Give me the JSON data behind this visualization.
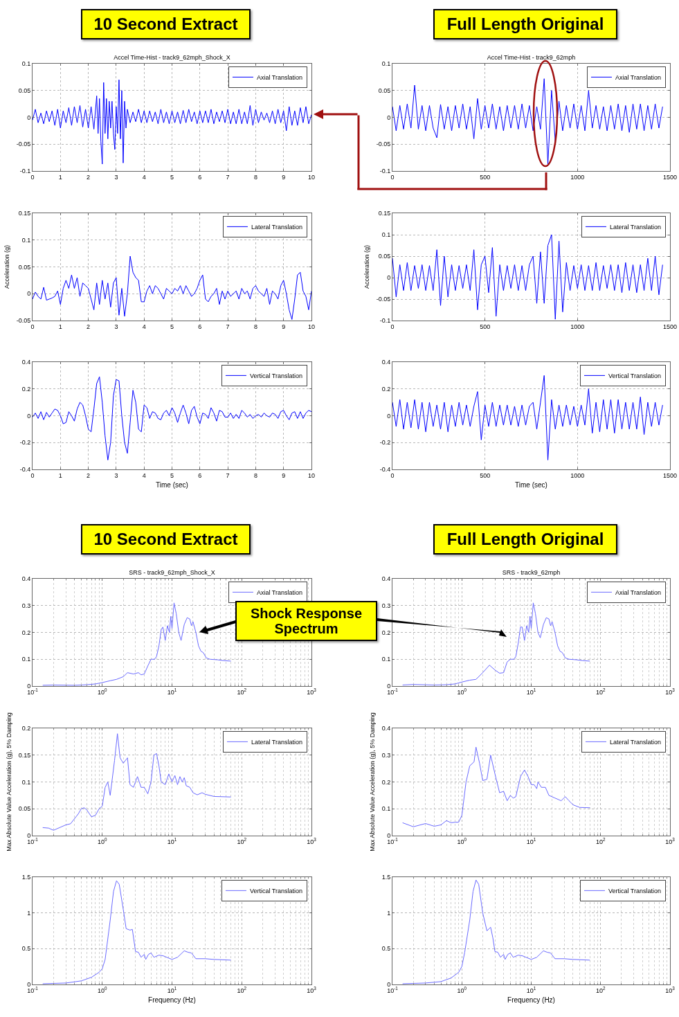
{
  "chart_data": [
    {
      "type": "line",
      "title": "Accel Time-Hist - track9_62mph_Shock_X",
      "annotations": [
        "10 Second Extract"
      ],
      "xlim": [
        0,
        10
      ],
      "xticks": [
        0,
        1,
        2,
        3,
        4,
        5,
        6,
        7,
        8,
        9,
        10
      ],
      "ylim": [
        -0.1,
        0.1
      ],
      "yticks": [
        -0.1,
        -0.05,
        0,
        0.05,
        0.1
      ],
      "grid": true,
      "legend": "top right",
      "line_style": "solid",
      "series": [
        {
          "name": "Axial Translation",
          "color": "#0000ff",
          "x": [
            0,
            0.1,
            0.2,
            0.3,
            0.4,
            0.5,
            0.6,
            0.7,
            0.8,
            0.9,
            1,
            1.1,
            1.2,
            1.3,
            1.4,
            1.5,
            1.6,
            1.7,
            1.8,
            1.9,
            2,
            2.1,
            2.2,
            2.3,
            2.35,
            2.4,
            2.45,
            2.5,
            2.55,
            2.6,
            2.65,
            2.7,
            2.75,
            2.8,
            2.85,
            2.9,
            2.95,
            3,
            3.05,
            3.1,
            3.15,
            3.2,
            3.25,
            3.3,
            3.35,
            3.4,
            3.5,
            3.6,
            3.7,
            3.8,
            3.9,
            4,
            4.1,
            4.2,
            4.3,
            4.4,
            4.5,
            4.6,
            4.7,
            4.8,
            4.9,
            5,
            5.1,
            5.2,
            5.3,
            5.4,
            5.5,
            5.6,
            5.7,
            5.8,
            5.9,
            6,
            6.1,
            6.2,
            6.3,
            6.4,
            6.5,
            6.6,
            6.7,
            6.8,
            6.9,
            7,
            7.1,
            7.2,
            7.3,
            7.4,
            7.5,
            7.6,
            7.7,
            7.8,
            7.9,
            8,
            8.1,
            8.2,
            8.3,
            8.4,
            8.5,
            8.6,
            8.7,
            8.8,
            8.9,
            9,
            9.1,
            9.2,
            9.3,
            9.4,
            9.5,
            9.6,
            9.7,
            9.8,
            9.9,
            10
          ],
          "values": [
            -0.005,
            0.015,
            -0.01,
            0.008,
            -0.012,
            0.012,
            -0.008,
            0.012,
            -0.015,
            0.015,
            -0.02,
            0.012,
            -0.01,
            0.018,
            -0.015,
            0.02,
            -0.01,
            0.022,
            -0.018,
            0.015,
            -0.02,
            0.02,
            -0.022,
            0.04,
            -0.03,
            0.035,
            -0.045,
            -0.087,
            0.065,
            -0.03,
            0.035,
            -0.04,
            0.03,
            -0.02,
            0.03,
            -0.03,
            -0.06,
            0.02,
            -0.03,
            0.07,
            -0.04,
            0.05,
            -0.085,
            0.03,
            -0.02,
            0.015,
            -0.01,
            0.01,
            -0.008,
            0.015,
            -0.01,
            0.012,
            -0.01,
            0.012,
            -0.008,
            0.01,
            -0.012,
            0.015,
            -0.01,
            0.01,
            -0.012,
            0.012,
            -0.01,
            0.01,
            -0.012,
            0.013,
            -0.01,
            0.015,
            -0.008,
            0.01,
            -0.012,
            0.012,
            -0.01,
            0.012,
            -0.01,
            0.015,
            -0.012,
            0.01,
            -0.008,
            0.012,
            -0.01,
            0.015,
            -0.012,
            0.01,
            -0.012,
            0.015,
            -0.012,
            0.01,
            -0.012,
            0.022,
            -0.015,
            0.015,
            -0.01,
            0.01,
            -0.005,
            0.008,
            -0.01,
            0.012,
            -0.012,
            0.015,
            -0.01,
            0.012,
            -0.025,
            0.02,
            -0.015,
            0.012,
            -0.015,
            0.018,
            -0.01,
            0.02,
            -0.012,
            0.005
          ]
        }
      ]
    },
    {
      "type": "line",
      "title": "Accel Time-Hist - track9_62mph",
      "annotations": [
        "Full Length Original"
      ],
      "xlim": [
        0,
        1500
      ],
      "xticks": [
        0,
        500,
        1000,
        1500
      ],
      "ylim": [
        -0.1,
        0.1
      ],
      "yticks": [
        -0.1,
        -0.05,
        0,
        0.05,
        0.1
      ],
      "grid": true,
      "legend": "top right",
      "line_style": "solid",
      "series": [
        {
          "name": "Axial Translation",
          "color": "#0000ff",
          "x": [
            0,
            20,
            40,
            60,
            80,
            100,
            120,
            140,
            160,
            180,
            200,
            220,
            240,
            260,
            280,
            300,
            320,
            340,
            360,
            380,
            400,
            420,
            440,
            460,
            480,
            500,
            520,
            540,
            560,
            580,
            600,
            620,
            640,
            660,
            680,
            700,
            720,
            740,
            760,
            780,
            800,
            820,
            840,
            860,
            880,
            900,
            920,
            940,
            960,
            980,
            1000,
            1020,
            1040,
            1060,
            1080,
            1100,
            1120,
            1140,
            1160,
            1180,
            1200,
            1220,
            1240,
            1260,
            1280,
            1300,
            1320,
            1340,
            1360,
            1380,
            1400,
            1420,
            1440,
            1460
          ],
          "values": [
            0.02,
            -0.025,
            0.022,
            -0.022,
            0.025,
            -0.02,
            0.06,
            -0.022,
            0.022,
            -0.025,
            0.022,
            -0.02,
            -0.038,
            0.024,
            -0.022,
            0.02,
            -0.025,
            0.022,
            -0.02,
            0.025,
            -0.022,
            0.02,
            -0.04,
            0.035,
            -0.022,
            0.022,
            -0.02,
            0.025,
            -0.022,
            0.02,
            -0.025,
            0.022,
            -0.02,
            0.022,
            -0.022,
            0.025,
            -0.02,
            0.022,
            -0.025,
            0.02,
            -0.022,
            0.072,
            -0.087,
            0.05,
            -0.045,
            0.03,
            -0.025,
            0.022,
            -0.02,
            0.025,
            -0.022,
            0.022,
            -0.025,
            0.05,
            -0.02,
            0.022,
            -0.022,
            0.02,
            -0.025,
            0.022,
            -0.022,
            0.025,
            -0.025,
            0.022,
            -0.028,
            0.025,
            -0.022,
            0.025,
            -0.025,
            0.022,
            -0.022,
            0.025,
            -0.02,
            0.02
          ]
        }
      ]
    },
    {
      "type": "line",
      "ylabel": "Acceleration (g)",
      "xlim": [
        0,
        10
      ],
      "xticks": [
        0,
        1,
        2,
        3,
        4,
        5,
        6,
        7,
        8,
        9,
        10
      ],
      "ylim": [
        -0.05,
        0.15
      ],
      "yticks": [
        -0.05,
        0,
        0.05,
        0.1,
        0.15
      ],
      "grid": true,
      "legend": "top right",
      "line_style": "solid",
      "series": [
        {
          "name": "Lateral Translation",
          "color": "#0000ff",
          "x": [
            0,
            0.1,
            0.2,
            0.3,
            0.4,
            0.5,
            0.6,
            0.7,
            0.8,
            0.9,
            1,
            1.1,
            1.2,
            1.3,
            1.4,
            1.5,
            1.6,
            1.7,
            1.8,
            1.9,
            2,
            2.1,
            2.2,
            2.3,
            2.4,
            2.5,
            2.6,
            2.7,
            2.8,
            2.9,
            3,
            3.1,
            3.2,
            3.3,
            3.4,
            3.5,
            3.6,
            3.7,
            3.8,
            3.9,
            4,
            4.1,
            4.2,
            4.3,
            4.4,
            4.5,
            4.6,
            4.7,
            4.8,
            4.9,
            5,
            5.1,
            5.2,
            5.3,
            5.4,
            5.5,
            5.6,
            5.7,
            5.8,
            5.9,
            6,
            6.1,
            6.2,
            6.3,
            6.4,
            6.5,
            6.6,
            6.7,
            6.8,
            6.9,
            7,
            7.1,
            7.2,
            7.3,
            7.4,
            7.5,
            7.6,
            7.7,
            7.8,
            7.9,
            8,
            8.1,
            8.2,
            8.3,
            8.4,
            8.5,
            8.6,
            8.7,
            8.8,
            8.9,
            9,
            9.1,
            9.2,
            9.3,
            9.4,
            9.5,
            9.6,
            9.7,
            9.8,
            9.9,
            10
          ],
          "values": [
            -0.01,
            0.003,
            -0.005,
            -0.01,
            0.012,
            -0.012,
            -0.01,
            -0.008,
            -0.005,
            0.005,
            -0.02,
            0.01,
            0.025,
            0.01,
            0.035,
            0.01,
            0.03,
            -0.005,
            0.02,
            0.015,
            0.01,
            -0.01,
            -0.03,
            0.02,
            -0.02,
            0.025,
            -0.01,
            0.02,
            -0.025,
            0.02,
            0.03,
            -0.04,
            0.01,
            -0.042,
            0,
            0.07,
            0.04,
            0.03,
            0.025,
            -0.015,
            -0.015,
            0.005,
            0.015,
            0,
            0.015,
            0.01,
            0,
            -0.01,
            0.01,
            0.005,
            0,
            0.01,
            0.005,
            0.015,
            0,
            0.015,
            0.005,
            -0.005,
            0,
            0.01,
            0.025,
            0.035,
            -0.01,
            -0.015,
            -0.005,
            0,
            0.01,
            -0.02,
            0.005,
            -0.01,
            0.005,
            -0.005,
            0,
            0.005,
            -0.01,
            0.01,
            0,
            0.005,
            -0.01,
            0.01,
            0.015,
            0.005,
            0,
            -0.005,
            0.01,
            -0.02,
            0.005,
            0,
            -0.01,
            0.015,
            0.025,
            0,
            -0.03,
            -0.048,
            -0.01,
            0.035,
            0.04,
            0.005,
            -0.005,
            -0.03,
            0.005
          ]
        }
      ]
    },
    {
      "type": "line",
      "ylabel": "Acceleration (g)",
      "xlim": [
        0,
        1500
      ],
      "xticks": [
        0,
        500,
        1000,
        1500
      ],
      "ylim": [
        -0.1,
        0.15
      ],
      "yticks": [
        -0.1,
        -0.05,
        0,
        0.05,
        0.1,
        0.15
      ],
      "grid": true,
      "legend": "top right",
      "line_style": "solid",
      "series": [
        {
          "name": "Lateral Translation",
          "color": "#0000ff",
          "x": [
            0,
            20,
            40,
            60,
            80,
            100,
            120,
            140,
            160,
            180,
            200,
            220,
            240,
            260,
            280,
            300,
            320,
            340,
            360,
            380,
            400,
            420,
            440,
            460,
            480,
            500,
            520,
            540,
            560,
            580,
            600,
            620,
            640,
            660,
            680,
            700,
            720,
            740,
            760,
            780,
            800,
            820,
            840,
            860,
            880,
            900,
            920,
            940,
            960,
            980,
            1000,
            1020,
            1040,
            1060,
            1080,
            1100,
            1120,
            1140,
            1160,
            1180,
            1200,
            1220,
            1240,
            1260,
            1280,
            1300,
            1320,
            1340,
            1360,
            1380,
            1400,
            1420,
            1440,
            1460
          ],
          "values": [
            0.045,
            -0.045,
            0.03,
            -0.03,
            0.035,
            -0.03,
            0.028,
            -0.025,
            0.03,
            -0.03,
            0.028,
            -0.03,
            0.065,
            -0.065,
            0.05,
            -0.045,
            0.03,
            -0.03,
            0.028,
            -0.025,
            0.03,
            -0.03,
            0.065,
            -0.075,
            0.03,
            0.05,
            -0.035,
            0.07,
            -0.09,
            0.03,
            -0.03,
            0.028,
            -0.025,
            0.03,
            -0.03,
            0.028,
            -0.03,
            0.03,
            0.05,
            -0.06,
            0.06,
            -0.06,
            0.075,
            0.1,
            -0.097,
            0.085,
            -0.08,
            0.035,
            -0.03,
            0.028,
            -0.025,
            0.03,
            -0.03,
            0.028,
            -0.03,
            0.035,
            -0.03,
            0.028,
            -0.025,
            0.03,
            -0.03,
            0.03,
            -0.035,
            0.035,
            -0.03,
            0.03,
            -0.035,
            0.03,
            -0.03,
            0.045,
            -0.03,
            0.05,
            -0.04,
            0.03
          ]
        }
      ]
    },
    {
      "type": "line",
      "xlabel": "Time (sec)",
      "xlim": [
        0,
        10
      ],
      "xticks": [
        0,
        1,
        2,
        3,
        4,
        5,
        6,
        7,
        8,
        9,
        10
      ],
      "ylim": [
        -0.4,
        0.4
      ],
      "yticks": [
        -0.4,
        -0.2,
        0,
        0.2,
        0.4
      ],
      "grid": true,
      "legend": "top right",
      "line_style": "solid",
      "series": [
        {
          "name": "Vertical Translation",
          "color": "#0000ff",
          "x": [
            0,
            0.1,
            0.2,
            0.3,
            0.4,
            0.5,
            0.6,
            0.7,
            0.8,
            0.9,
            1,
            1.1,
            1.2,
            1.3,
            1.4,
            1.5,
            1.6,
            1.7,
            1.8,
            1.9,
            2,
            2.1,
            2.2,
            2.3,
            2.4,
            2.5,
            2.6,
            2.7,
            2.8,
            2.9,
            3,
            3.1,
            3.2,
            3.3,
            3.4,
            3.5,
            3.6,
            3.7,
            3.8,
            3.9,
            4,
            4.1,
            4.2,
            4.3,
            4.4,
            4.5,
            4.6,
            4.7,
            4.8,
            4.9,
            5,
            5.1,
            5.2,
            5.3,
            5.4,
            5.5,
            5.6,
            5.7,
            5.8,
            5.9,
            6,
            6.1,
            6.2,
            6.3,
            6.4,
            6.5,
            6.6,
            6.7,
            6.8,
            6.9,
            7,
            7.1,
            7.2,
            7.3,
            7.4,
            7.5,
            7.6,
            7.7,
            7.8,
            7.9,
            8,
            8.1,
            8.2,
            8.3,
            8.4,
            8.5,
            8.6,
            8.7,
            8.8,
            8.9,
            9,
            9.1,
            9.2,
            9.3,
            9.4,
            9.5,
            9.6,
            9.7,
            9.8,
            9.9,
            10
          ],
          "values": [
            -0.01,
            0.02,
            -0.02,
            0.03,
            -0.03,
            0.025,
            -0.01,
            0.02,
            0.05,
            0.04,
            0,
            -0.06,
            -0.05,
            0.03,
            0,
            -0.04,
            0.05,
            0.1,
            0.08,
            0,
            -0.1,
            -0.12,
            0.05,
            0.24,
            0.29,
            0.1,
            -0.15,
            -0.33,
            -0.2,
            0.15,
            0.27,
            0.26,
            0,
            -0.2,
            -0.28,
            -0.05,
            0.19,
            0.1,
            -0.1,
            -0.12,
            0.08,
            0.06,
            -0.02,
            0.03,
            0.02,
            -0.02,
            -0.03,
            0.02,
            0.04,
            0,
            0.06,
            0.02,
            -0.05,
            0.02,
            0.08,
            0.02,
            -0.06,
            0.04,
            0.07,
            -0.01,
            -0.06,
            0.02,
            0.01,
            -0.02,
            0.06,
            0.02,
            -0.04,
            0.04,
            0.03,
            -0.01,
            -0.01,
            0.02,
            -0.02,
            0.01,
            -0.02,
            0.04,
            0.02,
            -0.01,
            0.01,
            -0.02,
            0,
            0.01,
            -0.01,
            0.02,
            0,
            -0.01,
            0.02,
            0.01,
            -0.02,
            0.03,
            0.04,
            0,
            -0.03,
            0.02,
            0.03,
            -0.02,
            0.03,
            -0.02,
            0.02,
            0.04,
            0.03
          ]
        }
      ]
    },
    {
      "type": "line",
      "xlabel": "Time (sec)",
      "xlim": [
        0,
        1500
      ],
      "xticks": [
        0,
        500,
        1000,
        1500
      ],
      "ylim": [
        -0.4,
        0.4
      ],
      "yticks": [
        -0.4,
        -0.2,
        0,
        0.2,
        0.4
      ],
      "grid": true,
      "legend": "top right",
      "line_style": "solid",
      "series": [
        {
          "name": "Vertical Translation",
          "color": "#0000ff",
          "x": [
            0,
            20,
            40,
            60,
            80,
            100,
            120,
            140,
            160,
            180,
            200,
            220,
            240,
            260,
            280,
            300,
            320,
            340,
            360,
            380,
            400,
            420,
            440,
            460,
            480,
            500,
            520,
            540,
            560,
            580,
            600,
            620,
            640,
            660,
            680,
            700,
            720,
            740,
            760,
            780,
            800,
            820,
            840,
            860,
            880,
            900,
            920,
            940,
            960,
            980,
            1000,
            1020,
            1040,
            1060,
            1080,
            1100,
            1120,
            1140,
            1160,
            1180,
            1200,
            1220,
            1240,
            1260,
            1280,
            1300,
            1320,
            1340,
            1360,
            1380,
            1400,
            1420,
            1440,
            1460
          ],
          "values": [
            0.1,
            -0.08,
            0.12,
            -0.1,
            0.1,
            -0.09,
            0.12,
            -0.1,
            0.1,
            -0.12,
            0.1,
            -0.08,
            0.08,
            -0.1,
            0.1,
            -0.12,
            0.08,
            -0.08,
            0.1,
            -0.07,
            0.08,
            -0.08,
            0.07,
            0.18,
            -0.18,
            0.08,
            -0.08,
            0.1,
            -0.08,
            0.08,
            -0.07,
            0.08,
            -0.07,
            0.07,
            -0.08,
            0.08,
            -0.07,
            0.07,
            0.1,
            -0.1,
            0.1,
            0.3,
            -0.33,
            0.12,
            -0.1,
            0.08,
            -0.08,
            0.08,
            -0.07,
            0.07,
            -0.08,
            0.08,
            -0.07,
            0.2,
            -0.13,
            0.1,
            -0.12,
            0.12,
            -0.1,
            0.12,
            -0.13,
            0.12,
            -0.1,
            0.1,
            -0.1,
            0.1,
            -0.1,
            0.14,
            -0.14,
            0.1,
            -0.08,
            0.1,
            -0.07,
            0.08
          ]
        }
      ]
    },
    {
      "type": "line",
      "title": "SRS - track9_62mph_Shock_X",
      "annotations": [
        "10 Second Extract",
        "Shock Response Spectrum"
      ],
      "log": "x",
      "xlim": [
        0.1,
        1000
      ],
      "xticks": [
        {
          "value": 0.1,
          "label": "10$^{-1}$"
        },
        {
          "value": 1,
          "label": "10$^{0}$"
        },
        {
          "value": 10,
          "label": "10$^{1}$"
        },
        {
          "value": 100,
          "label": "10$^{2}$"
        },
        {
          "value": 1000,
          "label": "10$^{3}$"
        }
      ],
      "ylim": [
        0,
        0.4
      ],
      "yticks": [
        0,
        0.1,
        0.2,
        0.3,
        0.4
      ],
      "grid": true,
      "legend": "top right",
      "line_style": "solid",
      "series": [
        {
          "name": "Axial Translation",
          "color": "#6b6bff",
          "x": [
            0.14,
            0.2,
            0.4,
            0.6,
            0.8,
            1,
            1.3,
            1.6,
            2,
            2.3,
            2.8,
            3.3,
            3.6,
            4,
            4.5,
            5,
            5.6,
            6,
            6.5,
            7,
            7.4,
            8,
            8.6,
            9.2,
            9.6,
            10,
            10.7,
            11.5,
            12.5,
            13.5,
            15,
            16.5,
            18,
            19,
            20,
            22,
            24,
            26,
            28,
            31,
            35,
            45,
            55,
            70
          ],
          "values": [
            0.003,
            0.004,
            0.003,
            0.005,
            0.008,
            0.013,
            0.02,
            0.025,
            0.035,
            0.05,
            0.045,
            0.05,
            0.042,
            0.045,
            0.075,
            0.1,
            0.1,
            0.11,
            0.15,
            0.21,
            0.22,
            0.17,
            0.225,
            0.2,
            0.26,
            0.215,
            0.31,
            0.27,
            0.2,
            0.17,
            0.23,
            0.255,
            0.25,
            0.225,
            0.24,
            0.2,
            0.15,
            0.13,
            0.125,
            0.105,
            0.1,
            0.098,
            0.095,
            0.093
          ]
        }
      ]
    },
    {
      "type": "line",
      "title": "SRS - track9_62mph",
      "annotations": [
        "Full Length Original"
      ],
      "log": "x",
      "xlim": [
        0.1,
        1000
      ],
      "xticks": [
        {
          "value": 0.1,
          "label": "10$^{-1}$"
        },
        {
          "value": 1,
          "label": "10$^{0}$"
        },
        {
          "value": 10,
          "label": "10$^{1}$"
        },
        {
          "value": 100,
          "label": "10$^{2}$"
        },
        {
          "value": 1000,
          "label": "10$^{3}$"
        }
      ],
      "ylim": [
        0,
        0.4
      ],
      "yticks": [
        0,
        0.1,
        0.2,
        0.3,
        0.4
      ],
      "grid": true,
      "legend": "top right",
      "line_style": "solid",
      "series": [
        {
          "name": "Axial Translation",
          "color": "#6b6bff",
          "x": [
            0.14,
            0.2,
            0.4,
            0.6,
            0.8,
            1,
            1.3,
            1.6,
            2,
            2.5,
            3,
            3.5,
            4,
            4.5,
            5,
            5.6,
            6,
            6.5,
            7,
            7.4,
            8,
            8.6,
            9.2,
            9.6,
            10,
            10.7,
            11.5,
            12.5,
            13.5,
            15,
            16.5,
            18,
            19,
            20,
            22,
            24,
            26,
            28,
            31,
            35,
            45,
            55,
            70
          ],
          "values": [
            0.004,
            0.006,
            0.004,
            0.005,
            0.008,
            0.015,
            0.022,
            0.025,
            0.05,
            0.078,
            0.06,
            0.048,
            0.05,
            0.09,
            0.1,
            0.1,
            0.11,
            0.16,
            0.22,
            0.22,
            0.17,
            0.225,
            0.2,
            0.26,
            0.215,
            0.31,
            0.27,
            0.2,
            0.18,
            0.23,
            0.255,
            0.25,
            0.225,
            0.24,
            0.2,
            0.15,
            0.13,
            0.125,
            0.105,
            0.1,
            0.098,
            0.095,
            0.093
          ]
        }
      ]
    },
    {
      "type": "line",
      "ylabel": "Max Absolute Value Acceleration (g), 5% Damping",
      "log": "x",
      "xlim": [
        0.1,
        1000
      ],
      "xticks": [
        {
          "value": 0.1,
          "label": "10$^{-1}$"
        },
        {
          "value": 1,
          "label": "10$^{0}$"
        },
        {
          "value": 10,
          "label": "10$^{1}$"
        },
        {
          "value": 100,
          "label": "10$^{2}$"
        },
        {
          "value": 1000,
          "label": "10$^{3}$"
        }
      ],
      "ylim": [
        0,
        0.2
      ],
      "yticks": [
        0,
        0.05,
        0.1,
        0.15,
        0.2
      ],
      "grid": true,
      "legend": "top right",
      "line_style": "solid",
      "series": [
        {
          "name": "Lateral Translation",
          "color": "#6b6bff",
          "x": [
            0.14,
            0.17,
            0.2,
            0.3,
            0.35,
            0.45,
            0.5,
            0.55,
            0.6,
            0.7,
            0.8,
            0.9,
            1,
            1.1,
            1.2,
            1.3,
            1.5,
            1.65,
            1.8,
            2,
            2.3,
            2.5,
            2.8,
            3.2,
            3.6,
            4,
            4.5,
            5,
            5.5,
            6,
            6.5,
            7,
            8,
            9,
            10,
            11,
            12,
            13,
            14,
            15,
            16,
            18,
            20,
            23,
            27,
            30,
            40,
            70
          ],
          "values": [
            0.015,
            0.014,
            0.01,
            0.02,
            0.022,
            0.04,
            0.05,
            0.052,
            0.048,
            0.035,
            0.038,
            0.05,
            0.055,
            0.09,
            0.1,
            0.075,
            0.14,
            0.19,
            0.145,
            0.135,
            0.145,
            0.095,
            0.09,
            0.11,
            0.09,
            0.09,
            0.078,
            0.1,
            0.15,
            0.153,
            0.13,
            0.1,
            0.095,
            0.115,
            0.1,
            0.112,
            0.095,
            0.11,
            0.1,
            0.108,
            0.093,
            0.09,
            0.08,
            0.076,
            0.08,
            0.077,
            0.073,
            0.072
          ]
        }
      ]
    },
    {
      "type": "line",
      "ylabel": "Max Absolute Value Acceleration (g), 5% Damping",
      "log": "x",
      "xlim": [
        0.1,
        1000
      ],
      "xticks": [
        {
          "value": 0.1,
          "label": "10$^{-1}$"
        },
        {
          "value": 1,
          "label": "10$^{0}$"
        },
        {
          "value": 10,
          "label": "10$^{1}$"
        },
        {
          "value": 100,
          "label": "10$^{2}$"
        },
        {
          "value": 1000,
          "label": "10$^{3}$"
        }
      ],
      "ylim": [
        0,
        0.4
      ],
      "yticks": [
        0,
        0.1,
        0.2,
        0.3,
        0.4
      ],
      "grid": true,
      "legend": "top right",
      "line_style": "solid",
      "series": [
        {
          "name": "Lateral Translation",
          "color": "#6b6bff",
          "x": [
            0.14,
            0.2,
            0.3,
            0.4,
            0.5,
            0.6,
            0.7,
            0.8,
            0.9,
            1,
            1.15,
            1.3,
            1.5,
            1.6,
            1.8,
            2,
            2.3,
            2.6,
            3,
            3.5,
            4,
            4.5,
            5,
            5.5,
            6,
            7,
            8,
            9,
            10,
            11,
            12,
            12.5,
            14,
            16,
            18,
            22,
            27,
            31,
            35,
            40,
            50,
            70
          ],
          "values": [
            0.048,
            0.033,
            0.045,
            0.035,
            0.04,
            0.056,
            0.048,
            0.05,
            0.05,
            0.075,
            0.2,
            0.26,
            0.275,
            0.33,
            0.27,
            0.205,
            0.21,
            0.3,
            0.23,
            0.16,
            0.165,
            0.13,
            0.15,
            0.14,
            0.145,
            0.22,
            0.245,
            0.22,
            0.19,
            0.19,
            0.175,
            0.2,
            0.18,
            0.18,
            0.15,
            0.14,
            0.13,
            0.145,
            0.13,
            0.115,
            0.105,
            0.104
          ]
        }
      ]
    },
    {
      "type": "line",
      "xlabel": "Frequency (Hz)",
      "log": "x",
      "xlim": [
        0.1,
        1000
      ],
      "xticks": [
        {
          "value": 0.1,
          "label": "10$^{-1}$"
        },
        {
          "value": 1,
          "label": "10$^{0}$"
        },
        {
          "value": 10,
          "label": "10$^{1}$"
        },
        {
          "value": 100,
          "label": "10$^{2}$"
        },
        {
          "value": 1000,
          "label": "10$^{3}$"
        }
      ],
      "ylim": [
        0,
        1.5
      ],
      "yticks": [
        0,
        0.5,
        1,
        1.5
      ],
      "grid": true,
      "legend": "top right",
      "line_style": "solid",
      "series": [
        {
          "name": "Vertical Translation",
          "color": "#6b6bff",
          "x": [
            0.14,
            0.3,
            0.5,
            0.7,
            0.9,
            1,
            1.1,
            1.3,
            1.45,
            1.6,
            1.75,
            2,
            2.2,
            2.5,
            2.7,
            3,
            3.3,
            3.6,
            4,
            4.2,
            4.6,
            5,
            5.5,
            6.5,
            7.5,
            10,
            12,
            15,
            17,
            19,
            22,
            30,
            40,
            70
          ],
          "values": [
            0.01,
            0.02,
            0.05,
            0.1,
            0.17,
            0.22,
            0.35,
            0.9,
            1.3,
            1.45,
            1.4,
            1.05,
            0.78,
            0.76,
            0.77,
            0.46,
            0.45,
            0.38,
            0.42,
            0.35,
            0.42,
            0.44,
            0.38,
            0.41,
            0.4,
            0.35,
            0.38,
            0.47,
            0.45,
            0.44,
            0.36,
            0.36,
            0.35,
            0.34
          ]
        }
      ]
    },
    {
      "type": "line",
      "xlabel": "Frequency (Hz)",
      "log": "x",
      "xlim": [
        0.1,
        1000
      ],
      "xticks": [
        {
          "value": 0.1,
          "label": "10$^{-1}$"
        },
        {
          "value": 1,
          "label": "10$^{0}$"
        },
        {
          "value": 10,
          "label": "10$^{1}$"
        },
        {
          "value": 100,
          "label": "10$^{2}$"
        },
        {
          "value": 1000,
          "label": "10$^{3}$"
        }
      ],
      "ylim": [
        0,
        1.5
      ],
      "yticks": [
        0,
        0.5,
        1,
        1.5
      ],
      "grid": true,
      "legend": "top right",
      "line_style": "solid",
      "series": [
        {
          "name": "Vertical Translation",
          "color": "#6b6bff",
          "x": [
            0.14,
            0.3,
            0.5,
            0.7,
            0.9,
            1,
            1.1,
            1.3,
            1.45,
            1.6,
            1.75,
            2,
            2.3,
            2.6,
            2.8,
            3,
            3.3,
            3.6,
            4,
            4.2,
            4.6,
            5,
            5.5,
            6.5,
            7.5,
            10,
            12,
            15,
            17,
            19,
            22,
            30,
            40,
            70
          ],
          "values": [
            0.01,
            0.02,
            0.04,
            0.09,
            0.17,
            0.25,
            0.45,
            0.9,
            1.3,
            1.46,
            1.4,
            1.0,
            0.75,
            0.8,
            0.65,
            0.46,
            0.45,
            0.38,
            0.42,
            0.35,
            0.42,
            0.44,
            0.38,
            0.41,
            0.4,
            0.35,
            0.38,
            0.47,
            0.45,
            0.44,
            0.36,
            0.36,
            0.35,
            0.34
          ]
        }
      ]
    }
  ]
}
